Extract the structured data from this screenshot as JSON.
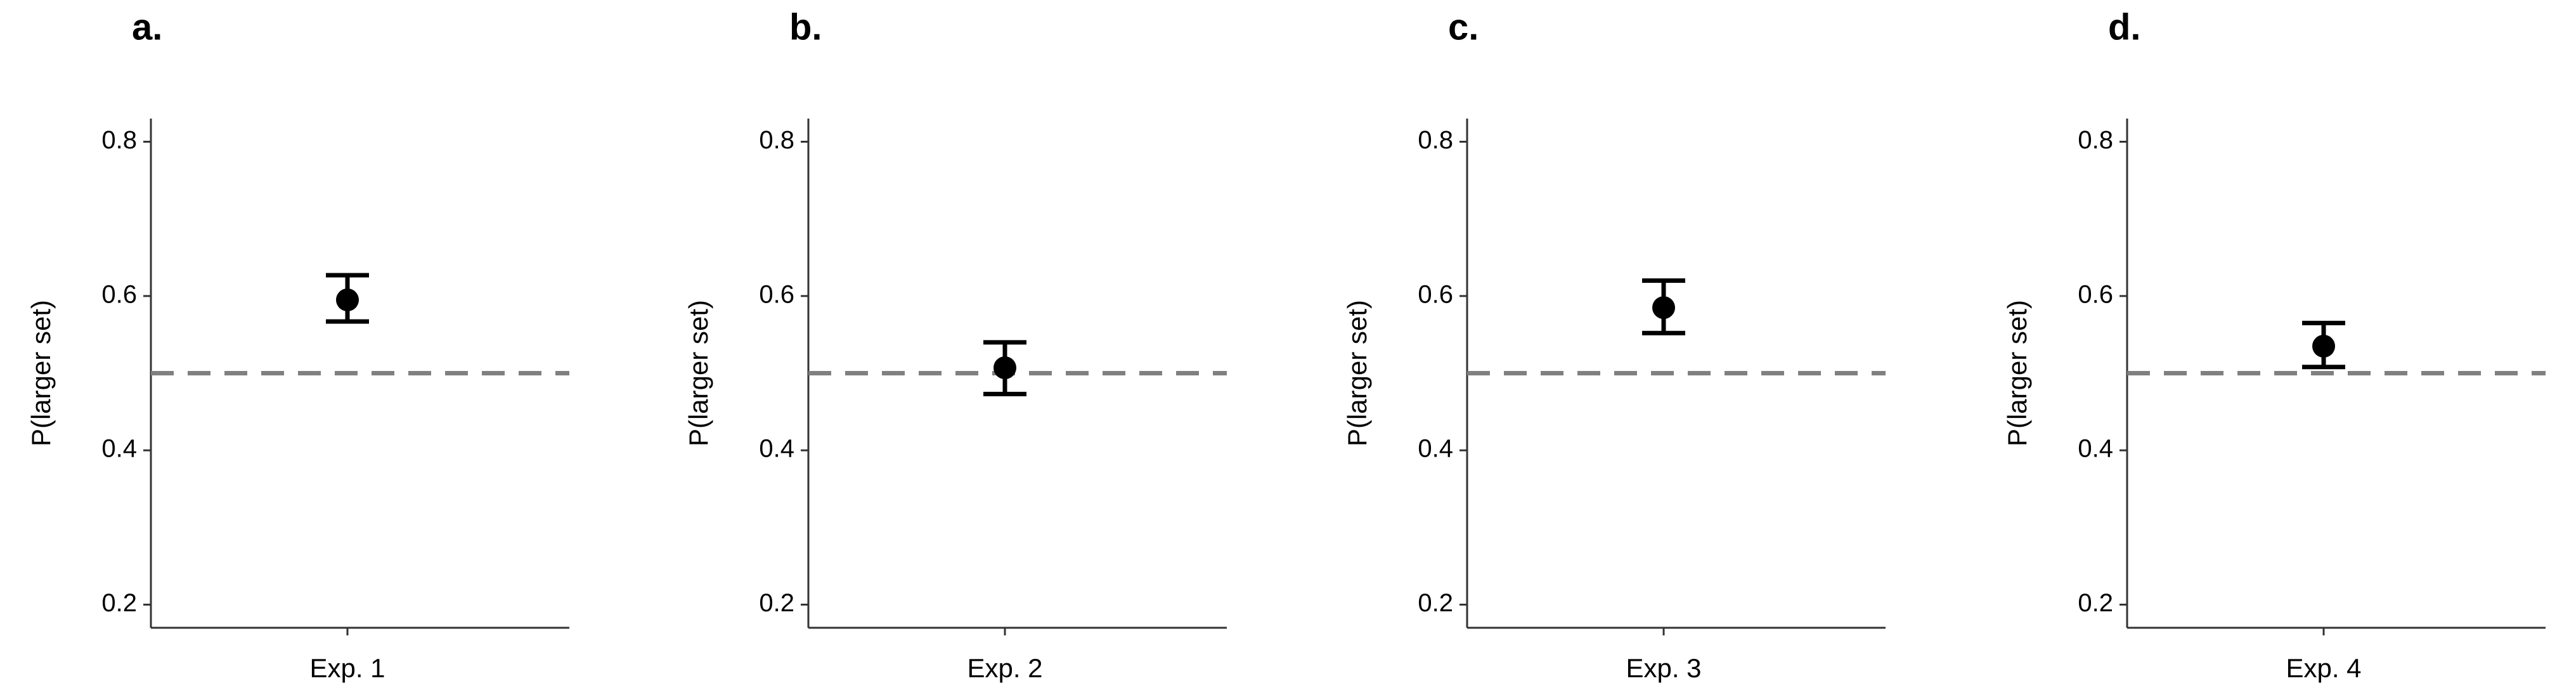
{
  "chart_data": [
    {
      "type": "point",
      "panel_label": "a.",
      "y_label": "P(larger set)",
      "categories": [
        "Exp. 1"
      ],
      "values": [
        0.595
      ],
      "lower": [
        0.567
      ],
      "upper": [
        0.627
      ],
      "color": "#000000",
      "ylim": [
        0.17,
        0.83
      ],
      "yticks": [
        0.2,
        0.4,
        0.6,
        0.8
      ],
      "ref_line": 0.5,
      "ref_color": "#808080"
    },
    {
      "type": "point",
      "panel_label": "b.",
      "y_label": "P(larger set)",
      "categories": [
        "Exp. 2"
      ],
      "values": [
        0.507
      ],
      "lower": [
        0.473
      ],
      "upper": [
        0.54
      ],
      "color": "#000000",
      "ylim": [
        0.17,
        0.83
      ],
      "yticks": [
        0.2,
        0.4,
        0.6,
        0.8
      ],
      "ref_line": 0.5,
      "ref_color": "#808080"
    },
    {
      "type": "point",
      "panel_label": "c.",
      "y_label": "P(larger set)",
      "categories": [
        "Exp. 3"
      ],
      "values": [
        0.585
      ],
      "lower": [
        0.552
      ],
      "upper": [
        0.62
      ],
      "color": "#000000",
      "ylim": [
        0.17,
        0.83
      ],
      "yticks": [
        0.2,
        0.4,
        0.6,
        0.8
      ],
      "ref_line": 0.5,
      "ref_color": "#808080"
    },
    {
      "type": "point",
      "panel_label": "d.",
      "y_label": "P(larger set)",
      "categories": [
        "Exp. 4"
      ],
      "values": [
        0.535
      ],
      "lower": [
        0.508
      ],
      "upper": [
        0.565
      ],
      "color": "#000000",
      "ylim": [
        0.17,
        0.83
      ],
      "yticks": [
        0.2,
        0.4,
        0.6,
        0.8
      ],
      "ref_line": 0.5,
      "ref_color": "#808080"
    }
  ]
}
